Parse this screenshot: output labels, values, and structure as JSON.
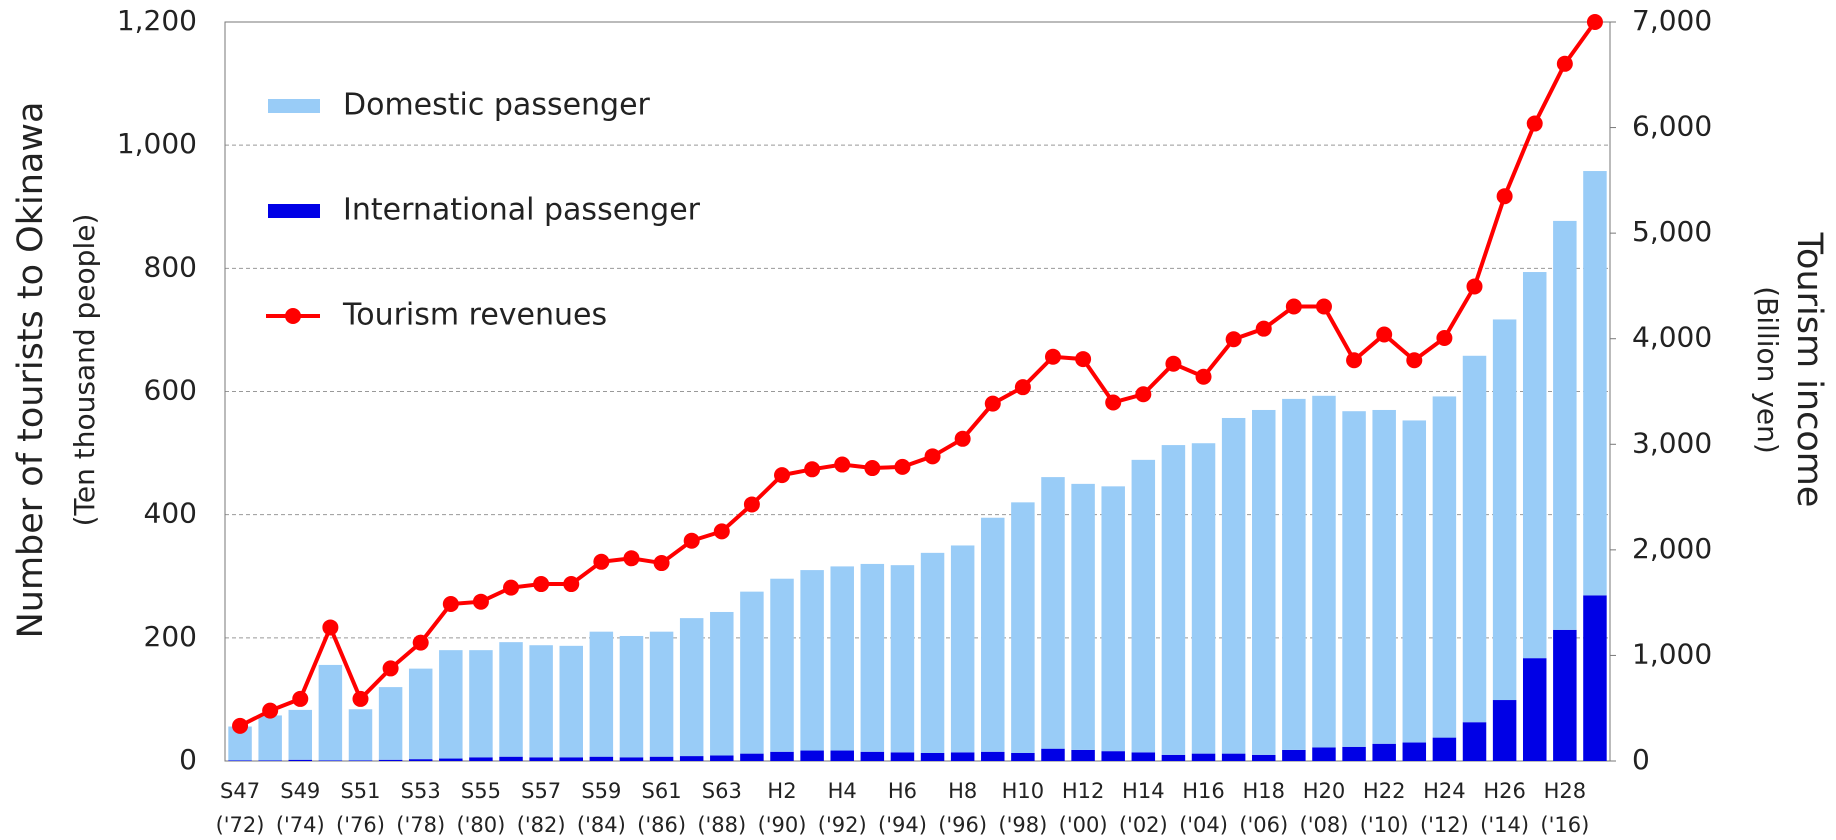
{
  "chart_data": {
    "type": "bar",
    "categories": [
      [
        "S47",
        "('72)"
      ],
      null,
      [
        "S49",
        "('74)"
      ],
      null,
      [
        "S51",
        "('76)"
      ],
      null,
      [
        "S53",
        "('78)"
      ],
      null,
      [
        "S55",
        "('80)"
      ],
      null,
      [
        "S57",
        "('82)"
      ],
      null,
      [
        "S59",
        "('84)"
      ],
      null,
      [
        "S61",
        "('86)"
      ],
      null,
      [
        "S63",
        "('88)"
      ],
      null,
      [
        "H2",
        "('90)"
      ],
      null,
      [
        "H4",
        "('92)"
      ],
      null,
      [
        "H6",
        "('94)"
      ],
      null,
      [
        "H8",
        "('96)"
      ],
      null,
      [
        "H10",
        "('98)"
      ],
      null,
      [
        "H12",
        "('00)"
      ],
      null,
      [
        "H14",
        "('02)"
      ],
      null,
      [
        "H16",
        "('04)"
      ],
      null,
      [
        "H18",
        "('06)"
      ],
      null,
      [
        "H20",
        "('08)"
      ],
      null,
      [
        "H22",
        "('10)"
      ],
      null,
      [
        "H24",
        "('12)"
      ],
      null,
      [
        "H26",
        "('14)"
      ],
      null,
      [
        "H28",
        "('16)"
      ],
      null
    ],
    "ylabel": "Number of tourists to Okinawa",
    "ylabel_unit": "(Ten thousand people)",
    "y2label": "Tourism income",
    "y2label_unit": "(Billion yen)",
    "ylim": [
      0,
      1200
    ],
    "yticks": [
      0,
      200,
      400,
      600,
      800,
      {
        "value": 1000,
        "label": "1,000"
      },
      {
        "value": 1200,
        "label": "1,200"
      }
    ],
    "y2lim": [
      0,
      7000
    ],
    "y2ticks": [
      0,
      {
        "value": 1000,
        "label": "1,000"
      },
      {
        "value": 2000,
        "label": "2,000"
      },
      {
        "value": 3000,
        "label": "3,000"
      },
      {
        "value": 4000,
        "label": "4,000"
      },
      {
        "value": 5000,
        "label": "5,000"
      },
      {
        "value": 6000,
        "label": "6,000"
      },
      {
        "value": 7000,
        "label": "7,000"
      }
    ],
    "grid": true,
    "stacked": true,
    "legend": "upper left",
    "series": [
      {
        "name": "Domestic passenger",
        "color": "#99ccf7",
        "type": "bar",
        "values": [
          55,
          73,
          81,
          155,
          83,
          118,
          147,
          176,
          174,
          186,
          182,
          181,
          203,
          197,
          203,
          224,
          233,
          263,
          281,
          293,
          299,
          305,
          304,
          325,
          336,
          380,
          407,
          441,
          432,
          430,
          475,
          503,
          504,
          545,
          560,
          570,
          571,
          545,
          542,
          523,
          554,
          595,
          618,
          627,
          664,
          689
        ]
      },
      {
        "name": "International passenger",
        "color": "#0000e6",
        "type": "bar",
        "values": [
          1,
          1,
          2,
          1,
          1,
          2,
          3,
          4,
          6,
          7,
          6,
          6,
          7,
          6,
          7,
          8,
          9,
          12,
          15,
          17,
          17,
          15,
          14,
          13,
          14,
          15,
          13,
          20,
          18,
          16,
          14,
          10,
          12,
          12,
          10,
          18,
          22,
          23,
          28,
          30,
          38,
          63,
          99,
          167,
          213,
          269
        ]
      },
      {
        "name": "Tourism revenues",
        "color": "#ff0000",
        "type": "line",
        "axis": "y2",
        "values": [
          333,
          477,
          588,
          1265,
          588,
          877,
          1121,
          1487,
          1509,
          1642,
          1676,
          1676,
          1887,
          1920,
          1875,
          2086,
          2175,
          2430,
          2708,
          2763,
          2808,
          2775,
          2786,
          2886,
          3052,
          3385,
          3541,
          3829,
          3807,
          3396,
          3474,
          3763,
          3640,
          3995,
          4095,
          4305,
          4305,
          3796,
          4040,
          3796,
          4007,
          4495,
          5350,
          6038,
          6604,
          7000
        ]
      }
    ]
  }
}
